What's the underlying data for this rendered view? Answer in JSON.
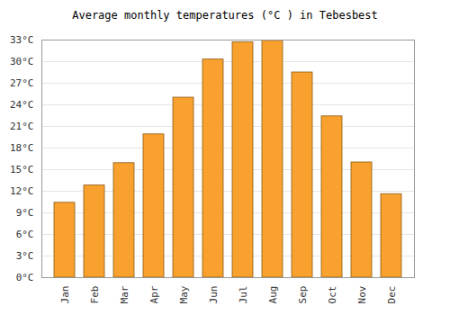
{
  "chart_data": {
    "type": "bar",
    "title": "Average monthly temperatures (°C ) in Tebesbest",
    "categories": [
      "Jan",
      "Feb",
      "Mar",
      "Apr",
      "May",
      "Jun",
      "Jul",
      "Aug",
      "Sep",
      "Oct",
      "Nov",
      "Dec"
    ],
    "values": [
      10.4,
      12.8,
      15.9,
      19.9,
      25.0,
      30.3,
      32.7,
      32.9,
      28.5,
      22.4,
      16.0,
      11.6
    ],
    "color": "#f9a12e",
    "ylim": [
      0,
      33
    ],
    "yticks": [
      {
        "value": 0,
        "label": "0°C"
      },
      {
        "value": 3,
        "label": "3°C"
      },
      {
        "value": 6,
        "label": "6°C"
      },
      {
        "value": 9,
        "label": "9°C"
      },
      {
        "value": 12,
        "label": "12°C"
      },
      {
        "value": 15,
        "label": "15°C"
      },
      {
        "value": 18,
        "label": "18°C"
      },
      {
        "value": 21,
        "label": "21°C"
      },
      {
        "value": 24,
        "label": "24°C"
      },
      {
        "value": 27,
        "label": "27°C"
      },
      {
        "value": 30,
        "label": "30°C"
      },
      {
        "value": 33,
        "label": "33°C"
      }
    ],
    "grid": true
  }
}
